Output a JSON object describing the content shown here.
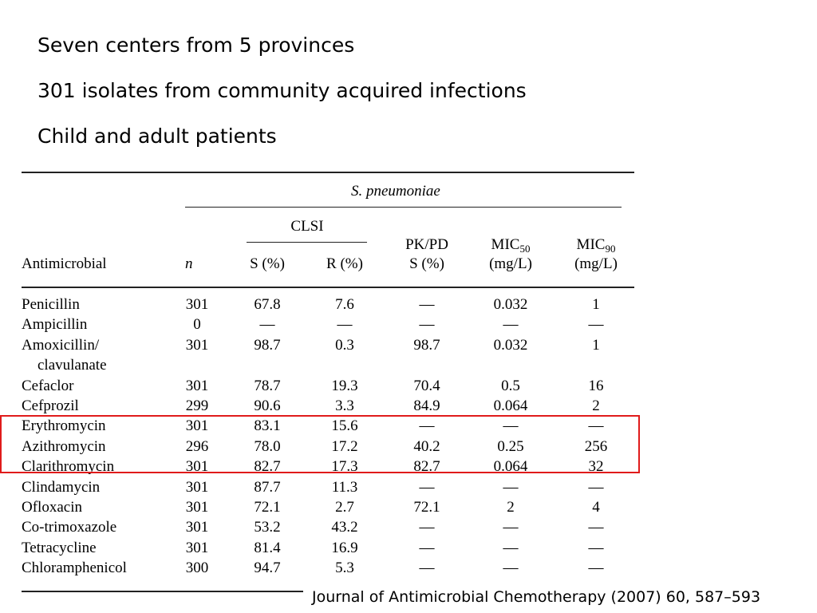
{
  "bullets": [
    "Seven centers from 5 provinces",
    "301 isolates from community acquired infections",
    "Child and adult patients"
  ],
  "table": {
    "group_header": "S. pneumoniae",
    "clsi_header": "CLSI",
    "columns": {
      "antimicrobial": "Antimicrobial",
      "n": "n",
      "s": "S (%)",
      "r": "R (%)",
      "pkpd_line1": "PK/PD",
      "pkpd_line2": "S (%)",
      "mic50_main": "MIC",
      "mic50_sub": "50",
      "mic50_unit": "(mg/L)",
      "mic90_main": "MIC",
      "mic90_sub": "90",
      "mic90_unit": "(mg/L)"
    },
    "rows": [
      {
        "name": "Penicillin",
        "n": "301",
        "s": "67.8",
        "r": "7.6",
        "pkpd": "—",
        "mic50": "0.032",
        "mic90": "1"
      },
      {
        "name": "Ampicillin",
        "n": "0",
        "s": "—",
        "r": "—",
        "pkpd": "—",
        "mic50": "—",
        "mic90": "—"
      },
      {
        "name": "Amoxicillin/",
        "n": "301",
        "s": "98.7",
        "r": "0.3",
        "pkpd": "98.7",
        "mic50": "0.032",
        "mic90": "1"
      },
      {
        "name": "clavulanate",
        "n": "",
        "s": "",
        "r": "",
        "pkpd": "",
        "mic50": "",
        "mic90": ""
      },
      {
        "name": "Cefaclor",
        "n": "301",
        "s": "78.7",
        "r": "19.3",
        "pkpd": "70.4",
        "mic50": "0.5",
        "mic90": "16"
      },
      {
        "name": "Cefprozil",
        "n": "299",
        "s": "90.6",
        "r": "3.3",
        "pkpd": "84.9",
        "mic50": "0.064",
        "mic90": "2"
      },
      {
        "name": "Erythromycin",
        "n": "301",
        "s": "83.1",
        "r": "15.6",
        "pkpd": "—",
        "mic50": "—",
        "mic90": "—"
      },
      {
        "name": "Azithromycin",
        "n": "296",
        "s": "78.0",
        "r": "17.2",
        "pkpd": "40.2",
        "mic50": "0.25",
        "mic90": "256"
      },
      {
        "name": "Clarithromycin",
        "n": "301",
        "s": "82.7",
        "r": "17.3",
        "pkpd": "82.7",
        "mic50": "0.064",
        "mic90": "32"
      },
      {
        "name": "Clindamycin",
        "n": "301",
        "s": "87.7",
        "r": "11.3",
        "pkpd": "—",
        "mic50": "—",
        "mic90": "—"
      },
      {
        "name": "Ofloxacin",
        "n": "301",
        "s": "72.1",
        "r": "2.7",
        "pkpd": "72.1",
        "mic50": "2",
        "mic90": "4"
      },
      {
        "name": "Co-trimoxazole",
        "n": "301",
        "s": "53.2",
        "r": "43.2",
        "pkpd": "—",
        "mic50": "—",
        "mic90": "—"
      },
      {
        "name": "Tetracycline",
        "n": "301",
        "s": "81.4",
        "r": "16.9",
        "pkpd": "—",
        "mic50": "—",
        "mic90": "—"
      },
      {
        "name": "Chloramphenicol",
        "n": "300",
        "s": "94.7",
        "r": "5.3",
        "pkpd": "—",
        "mic50": "—",
        "mic90": "—"
      }
    ]
  },
  "highlight_color": "#e01b1b",
  "citation": "Journal of Antimicrobial Chemotherapy (2007) 60, 587–593"
}
